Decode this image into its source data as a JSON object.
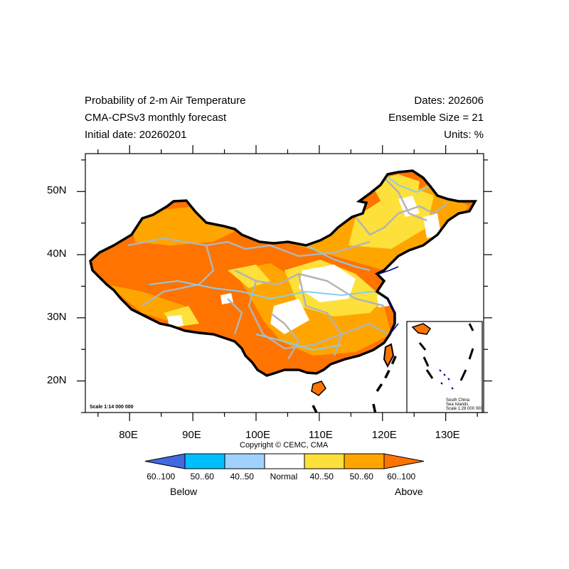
{
  "header": {
    "title_line1": "Probability of 2-m Air Temperature",
    "title_line2": "CMA-CPSv3 monthly forecast",
    "title_line3": "Initial date: 20260201",
    "right_line1": "Dates: 202606",
    "right_line2": "Ensemble Size = 21",
    "right_line3": "Units: %"
  },
  "map": {
    "lon_labels": [
      "80E",
      "90E",
      "100E",
      "110E",
      "120E",
      "130E"
    ],
    "lat_labels": [
      "50N",
      "40N",
      "30N",
      "20N"
    ],
    "lon_range": [
      73,
      136
    ],
    "lat_range": [
      15,
      56
    ],
    "scale_text": "Scale 1:14 000 000",
    "inset": {
      "title1": "South China",
      "title2": "Sea Islands",
      "scale": "Scale 1:28 000 000"
    },
    "copyright": "Copyright © CEMC, CMA"
  },
  "colorbar": {
    "labels": [
      "60..100",
      "50..60",
      "40..50",
      "Normal",
      "40..50",
      "50..60",
      "60..100"
    ],
    "below_label": "Below",
    "above_label": "Above",
    "colors": [
      "#4169e1",
      "#00bfff",
      "#a0d2ff",
      "#ffffff",
      "#fde03a",
      "#ffa500",
      "#ff7300"
    ]
  },
  "palette": {
    "above_40_50": "#fde03a",
    "above_50_60": "#ffa500",
    "above_60_100": "#ff7300",
    "province_lines": "#b4b4b4",
    "rivers": "#87ceeb",
    "coast": "#00008b"
  }
}
